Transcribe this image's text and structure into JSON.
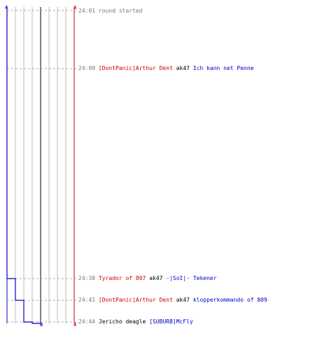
{
  "colors": {
    "team_a": "#cc0000",
    "team_b": "#0000cc",
    "grid": "#bbbbbb",
    "grid_dash": "#aaaaaa",
    "center_line": "#555555",
    "time": "#777777",
    "neutral": "#000000"
  },
  "axis": {
    "left_top_label": "4",
    "right_top_label": "4",
    "right_bottom_label": "4",
    "center_bottom_label": "0"
  },
  "events": [
    {
      "time": "24:01",
      "type": "info",
      "message": "round started"
    },
    {
      "time": "24:09",
      "type": "kill",
      "killer": "[DontPanic]Arthur Dent",
      "killer_team": "red",
      "weapon": "ak47",
      "victim": "Ich kann net Penne",
      "victim_team": "blue"
    },
    {
      "time": "24:38",
      "type": "kill",
      "killer": "Tyrador of 807",
      "killer_team": "red",
      "weapon": "ak47",
      "victim": "-|SoI|- Tekener",
      "victim_team": "blue"
    },
    {
      "time": "24:41",
      "type": "kill",
      "killer": "[DontPanic]Arthur Dent",
      "killer_team": "red",
      "weapon": "ak47",
      "victim": "klopperkommando of 809",
      "victim_team": "blue"
    },
    {
      "time": "24:44",
      "type": "kill",
      "killer": "Jericho",
      "killer_team": "black",
      "weapon": "deagle",
      "victim": "[SUBURB]McFly",
      "victim_team": "blue"
    }
  ],
  "chart_data": {
    "type": "line",
    "series": [
      {
        "values": [
          4,
          4,
          3,
          2,
          1,
          0
        ]
      }
    ],
    "ylim": [
      0,
      4
    ]
  }
}
